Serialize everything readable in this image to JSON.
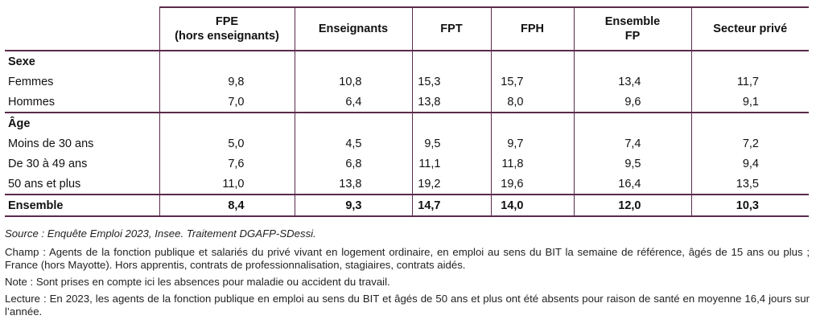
{
  "table": {
    "columns": [
      "FPE\n(hors enseignants)",
      "Enseignants",
      "FPT",
      "FPH",
      "Ensemble\nFP",
      "Secteur privé"
    ],
    "sections": [
      {
        "title": "Sexe",
        "rows": [
          {
            "label": "Femmes",
            "values": [
              "9,8",
              "10,8",
              "15,3",
              "15,7",
              "13,4",
              "11,7"
            ]
          },
          {
            "label": "Hommes",
            "values": [
              "7,0",
              "6,4",
              "13,8",
              "8,0",
              "9,6",
              "9,1"
            ]
          }
        ]
      },
      {
        "title": "Âge",
        "rows": [
          {
            "label": "Moins de 30 ans",
            "values": [
              "5,0",
              "4,5",
              "9,5",
              "9,7",
              "7,4",
              "7,2"
            ]
          },
          {
            "label": "De 30 à 49 ans",
            "values": [
              "7,6",
              "6,8",
              "11,1",
              "11,8",
              "9,5",
              "9,4"
            ]
          },
          {
            "label": "50 ans et plus",
            "values": [
              "11,0",
              "13,8",
              "19,2",
              "19,6",
              "16,4",
              "13,5"
            ]
          }
        ]
      }
    ],
    "total": {
      "label": "Ensemble",
      "values": [
        "8,4",
        "9,3",
        "14,7",
        "14,0",
        "12,0",
        "10,3"
      ]
    }
  },
  "notes": {
    "source": "Source : Enquête Emploi 2023, Insee. Traitement DGAFP-SDessi.",
    "champ": "Champ : Agents de la fonction publique et salariés du privé vivant en logement ordinaire, en emploi au sens du BIT la semaine de référence, âgés de 15 ans ou plus ; France (hors Mayotte). Hors apprentis, contrats de professionnalisation, stagiaires, contrats aidés.",
    "note": "Note : Sont prises en compte ici les absences pour maladie ou accident du travail.",
    "lecture": "Lecture : En 2023, les agents de la fonction publique en emploi au sens du BIT et âgés de 50 ans et plus ont été absents pour raison de santé en moyenne 16,4 jours sur l’année."
  },
  "colors": {
    "rule": "#5a2a4a",
    "text": "#111111"
  }
}
